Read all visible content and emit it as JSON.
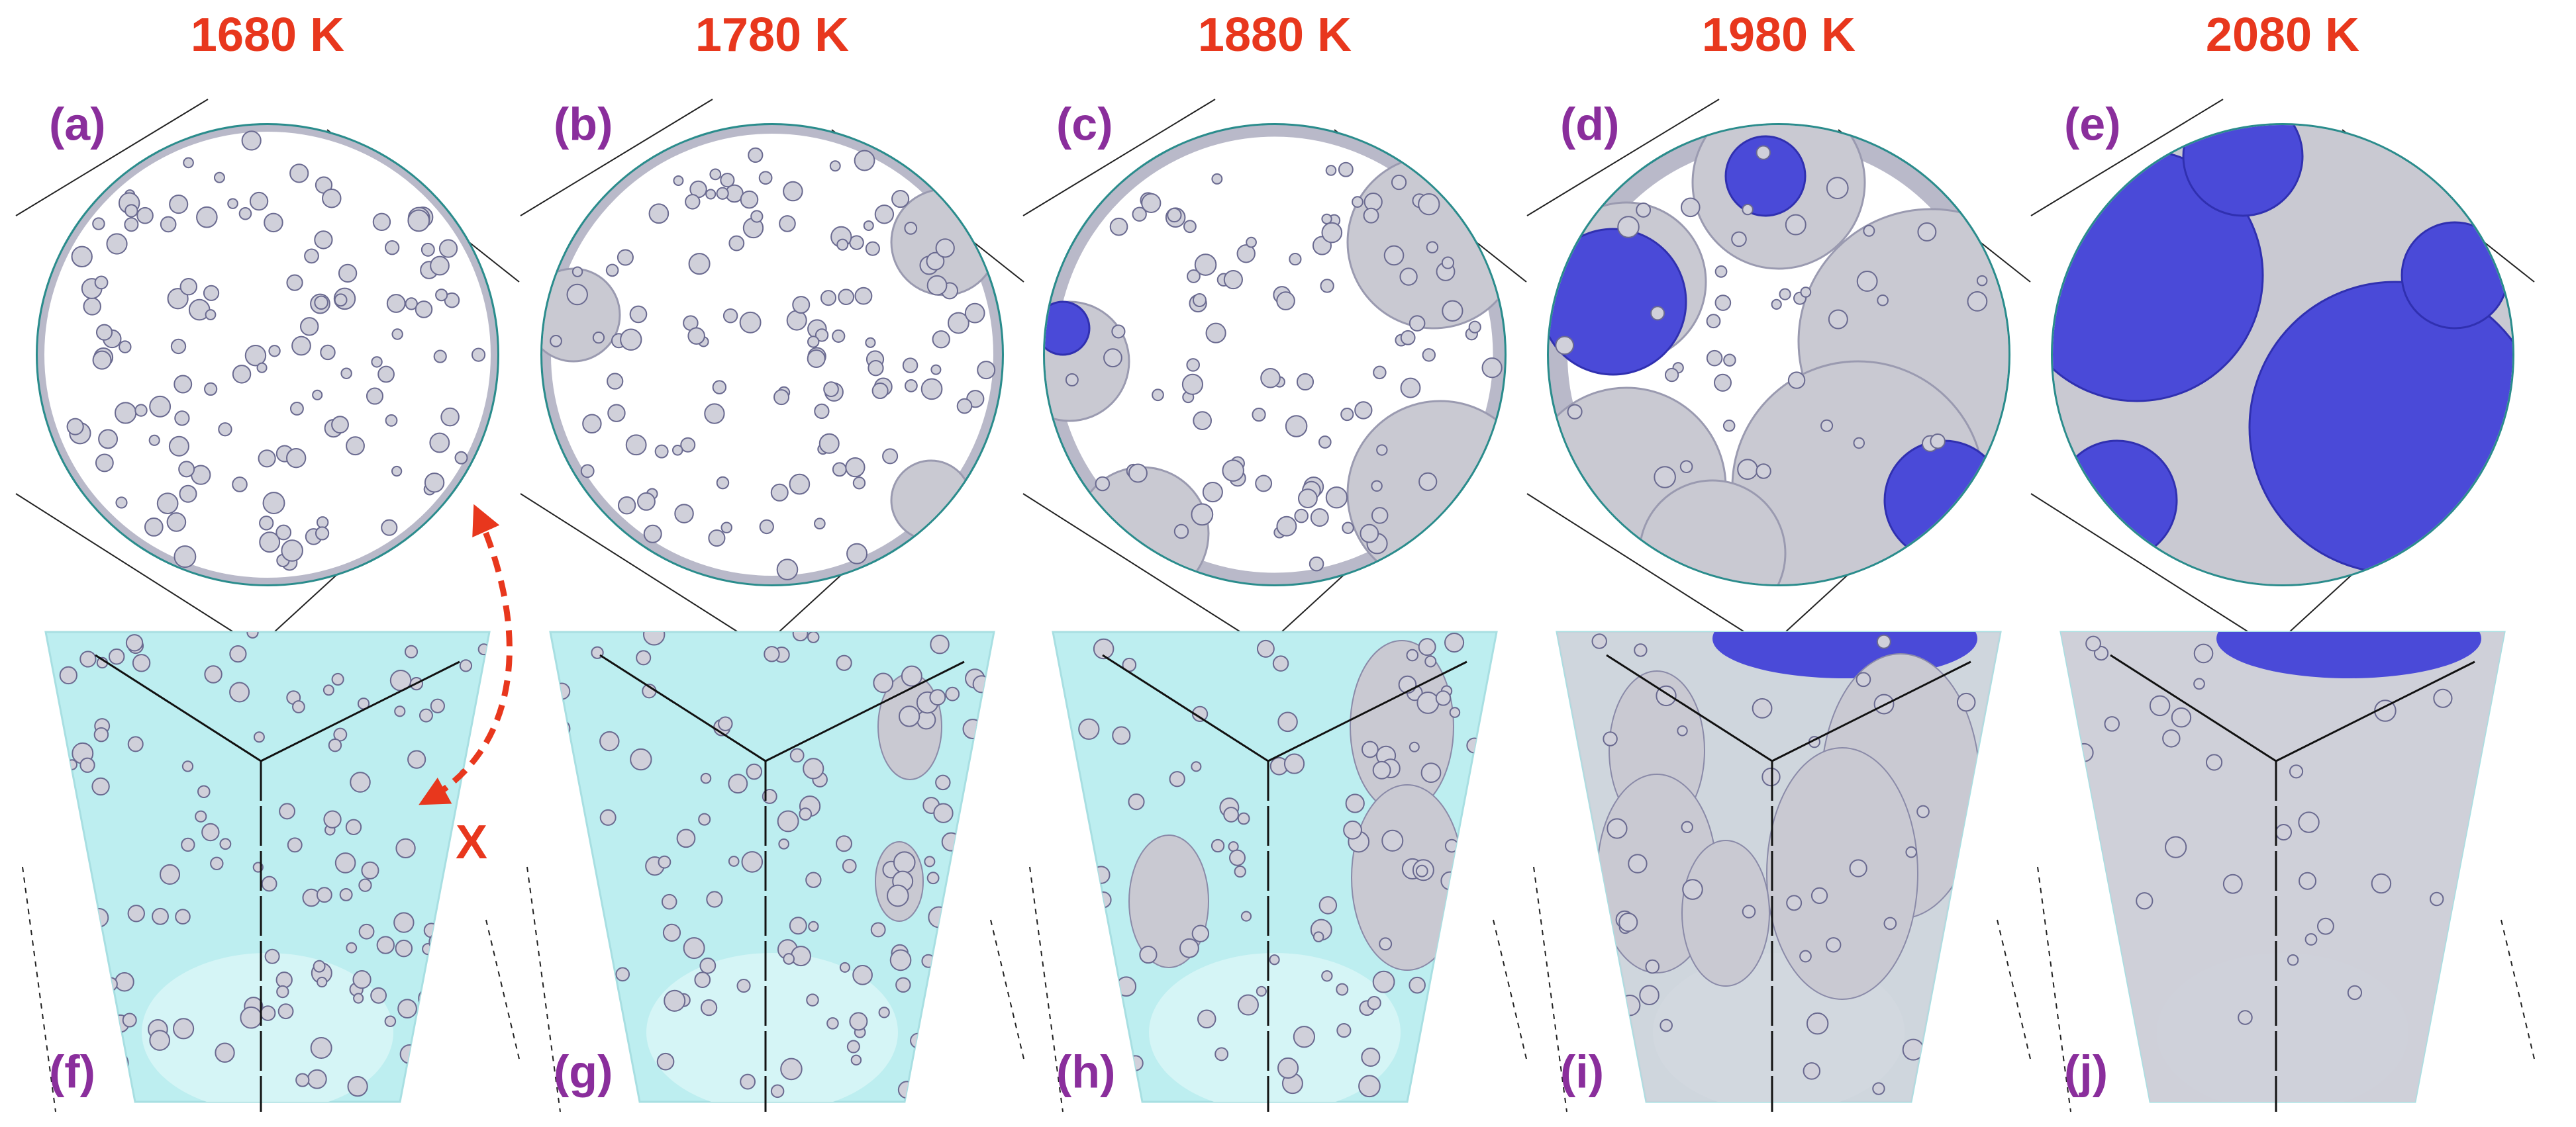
{
  "columns": [
    {
      "temperature": "1680 K",
      "top_label": "(a)",
      "bottom_label": "(f)"
    },
    {
      "temperature": "1780 K",
      "top_label": "(b)",
      "bottom_label": "(g)"
    },
    {
      "temperature": "1880 K",
      "top_label": "(c)",
      "bottom_label": "(h)"
    },
    {
      "temperature": "1980 K",
      "top_label": "(d)",
      "bottom_label": "(i)"
    },
    {
      "temperature": "2080 K",
      "top_label": "(e)",
      "bottom_label": "(j)"
    }
  ],
  "annotation": "X"
}
